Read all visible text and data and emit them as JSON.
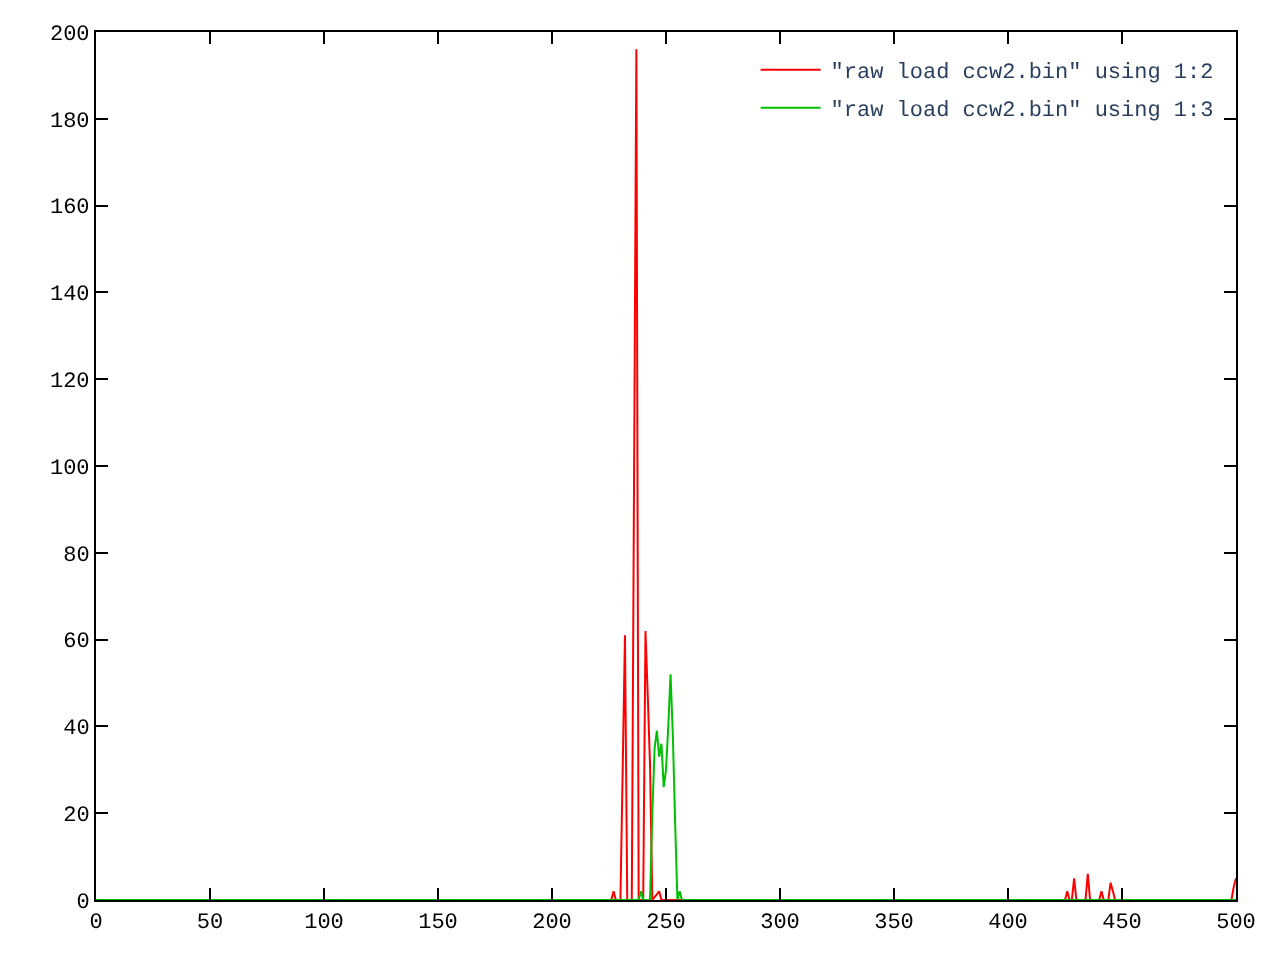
{
  "chart_data": {
    "type": "line",
    "series": [
      {
        "name": "\"raw load ccw2.bin\" using 1:2",
        "color": "#ff0000",
        "x": [
          0,
          226,
          227,
          228,
          230,
          231,
          232,
          233,
          235,
          236,
          237,
          238,
          240,
          241,
          242,
          243,
          244,
          247,
          248,
          425,
          426,
          427,
          428,
          429,
          430,
          434,
          435,
          436,
          440,
          441,
          442,
          444,
          445,
          446,
          447,
          498,
          499,
          500
        ],
        "values": [
          0,
          0,
          2,
          0,
          0,
          30,
          61,
          0,
          0,
          98,
          196,
          0,
          0,
          62,
          47,
          31,
          0,
          2,
          0,
          0,
          2,
          0,
          0,
          5,
          0,
          0,
          6,
          0,
          0,
          2,
          0,
          0,
          4,
          2,
          0,
          0,
          3,
          5
        ]
      },
      {
        "name": "\"raw load ccw2.bin\" using 1:3",
        "color": "#00c000",
        "x": [
          0,
          238,
          239,
          240,
          243,
          244,
          245,
          246,
          247,
          248,
          249,
          250,
          251,
          252,
          253,
          254,
          255,
          256,
          257,
          500
        ],
        "values": [
          0,
          0,
          2,
          0,
          0,
          20,
          35,
          39,
          33,
          36,
          26,
          30,
          40,
          52,
          38,
          18,
          0,
          2,
          0,
          0
        ]
      }
    ],
    "xlim": [
      0,
      500
    ],
    "xticks": [
      0,
      50,
      100,
      150,
      200,
      250,
      300,
      350,
      400,
      450,
      500
    ],
    "ylim": [
      0,
      200
    ],
    "yticks": [
      0,
      20,
      40,
      60,
      80,
      100,
      120,
      140,
      160,
      180,
      200
    ],
    "legend": "top right",
    "marker": "none",
    "line_style": "solid"
  }
}
